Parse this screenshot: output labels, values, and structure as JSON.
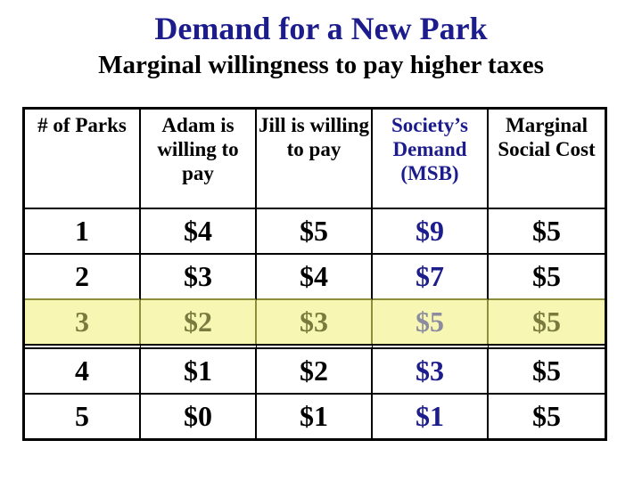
{
  "slide": {
    "title": "Demand for a New Park",
    "subtitle": "Marginal willingness to pay higher taxes"
  },
  "colors": {
    "navy": "#1C1C8C",
    "highlight_bg": "#F7F7B3",
    "olive_text": "#7A7A3E",
    "olive_line": "#8E8E3C",
    "grayblue_text": "#8C8CA0"
  },
  "table": {
    "headers": [
      "# of Parks",
      "Adam is willing to pay",
      "Jill is willing to pay",
      "Society’s Demand (MSB)",
      "Marginal Social Cost"
    ],
    "rows": [
      [
        "1",
        "$4",
        "$5",
        "$9",
        "$5"
      ],
      [
        "2",
        "$3",
        "$4",
        "$7",
        "$5"
      ],
      [
        "3",
        "$2",
        "$3",
        "$5",
        "$5"
      ],
      [
        "4",
        "$1",
        "$2",
        "$3",
        "$5"
      ],
      [
        "5",
        "$0",
        "$1",
        "$1",
        "$5"
      ]
    ],
    "highlighted_row_index": 2
  }
}
